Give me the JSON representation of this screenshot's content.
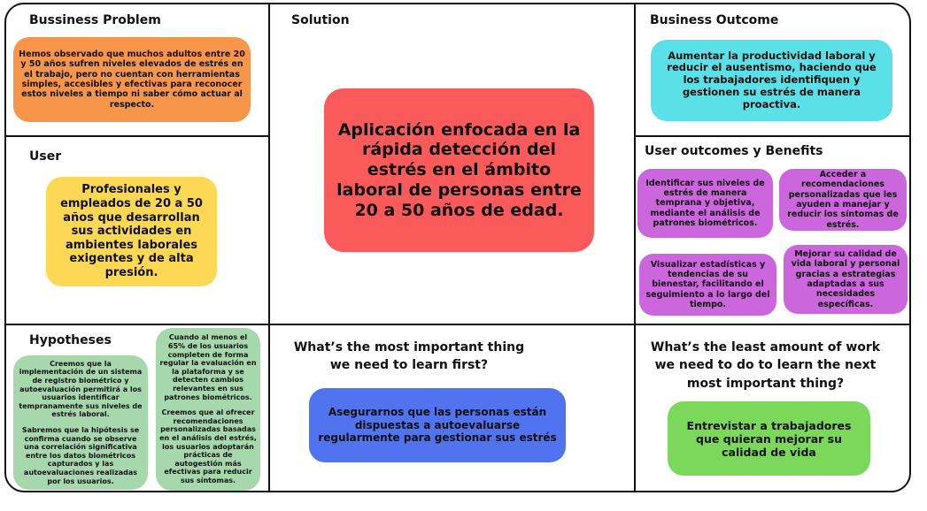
{
  "business_problem": {
    "title": "Bussiness Problem",
    "text": "Hemos observado que muchos adultos entre 20 y 50 años sufren niveles elevados de estrés en el trabajo, pero no cuentan con herramientas simples, accesibles y efectivas para reconocer estos niveles a tiempo ni saber cómo actuar al respecto."
  },
  "solution": {
    "title": "Solution",
    "text": "Aplicación enfocada en la rápida detección del estrés en el ámbito laboral de personas entre 20 a 50 años de edad."
  },
  "business_outcome": {
    "title": "Business Outcome",
    "text": "Aumentar la productividad laboral y reducir el ausentismo, haciendo que los trabajadores identifiquen y gestionen su estrés de manera proactiva."
  },
  "user": {
    "title": "User",
    "text": "Profesionales y empleados de 20 a 50 años que desarrollan sus actividades en ambientes laborales exigentes y de alta presión."
  },
  "user_outcomes": {
    "title": "User outcomes y Benefits",
    "items": [
      "Identificar sus niveles de estrés de manera temprana y objetiva, mediante el análisis de patrones biométricos.",
      "Acceder a recomendaciones personalizadas que les ayuden a manejar y reducir los síntomas de estrés.",
      "Visualizar estadísticas y tendencias de su bienestar, facilitando el seguimiento a lo largo del tiempo.",
      "Mejorar su calidad de vida laboral y personal gracias a estrategias adaptadas a sus necesidades específicas."
    ]
  },
  "hypotheses": {
    "title": "Hypotheses",
    "left_p1": "Creemos que la implementación de un sistema de registro biométrico y autoevaluación permitirá a los usuarios identificar tempranamente sus niveles de estrés laboral.",
    "left_p2": "Sabremos que la hipótesis se confirma cuando se observe una correlación significativa entre los datos biométricos capturados y las autoevaluaciones realizadas por los usuarios.",
    "right_p1": "Cuando al menos el 65% de los usuarios completen de forma regular la evaluación en la plataforma y se detecten cambios relevantes en sus patrones biométricos.",
    "right_p2": "Creemos que al ofrecer recomendaciones personalizadas basadas en el análisis del estrés, los usuarios adoptarán prácticas de autogestión más efectivas para reducir sus síntomas."
  },
  "learn_first": {
    "title": "What’s the most important thing we need to learn first?",
    "text": "Asegurarnos que las personas están dispuestas a autoevaluarse regularmente para gestionar sus estrés"
  },
  "least_work": {
    "title": "What’s the least amount of work we need to do to learn the next most important thing?",
    "text": "Entrevistar a trabajadores que quieran mejorar su calidad de vida"
  },
  "colors": {
    "orange": "#f7964a",
    "cyan": "#5ae0e6",
    "yellow": "#fdd855",
    "red": "#fb5a5a",
    "purple": "#cc66dd",
    "green": "#a6d7ad",
    "blue": "#5173f0",
    "lime": "#7bd85a"
  }
}
